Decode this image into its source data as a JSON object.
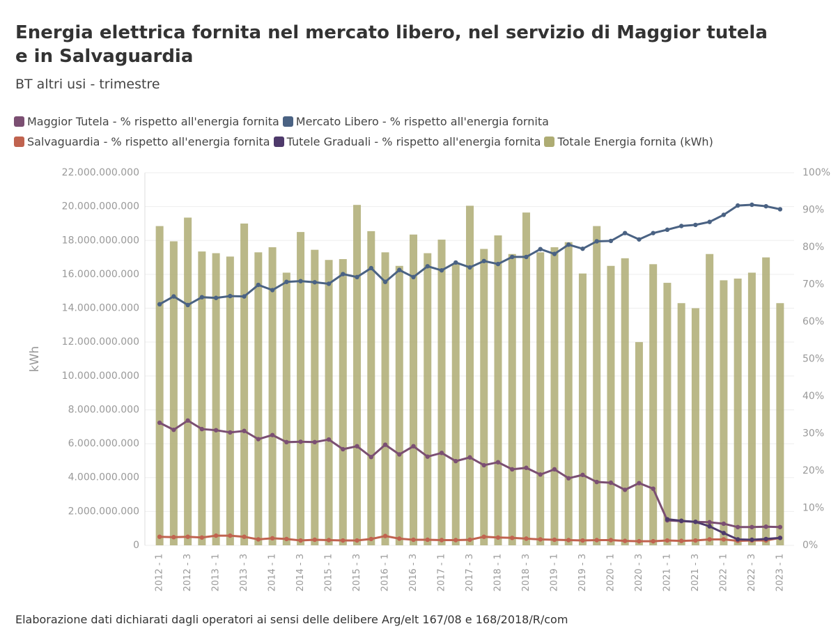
{
  "chart_data": {
    "type": "bar",
    "title": "Energia elettrica fornita nel mercato libero, nel servizio di Maggior tutela e in Salvaguardia",
    "subtitle": "BT altri usi - trimestre",
    "source": "Elaborazione dati dichiarati dagli operatori ai sensi delle delibere Arg/elt 167/08 e 168/2018/R/com",
    "y_label": "kWh",
    "categories": [
      "2012 - 1",
      null,
      "2012 - 3",
      null,
      "2013 - 1",
      null,
      "2013 - 3",
      null,
      "2014 - 1",
      null,
      "2014 - 3",
      null,
      "2015 - 1",
      null,
      "2015 - 3",
      null,
      "2016 - 1",
      null,
      "2016 - 3",
      null,
      "2017 - 1",
      null,
      "2017 - 3",
      null,
      "2018 - 1",
      null,
      "2018 - 3",
      null,
      "2019 - 1",
      null,
      "2019 - 3",
      null,
      "2020 - 1",
      null,
      "2020 - 3",
      null,
      "2021 - 1",
      null,
      "2021 - 3",
      null,
      "2022 - 1",
      null,
      "2022 - 3",
      null,
      "2023 - 1"
    ],
    "series": [
      {
        "name": "Maggior Tutela - % rispetto all'energia fornita",
        "type": "line",
        "axis": "y2",
        "color": "#7b4f72",
        "values": [
          32.9,
          31.0,
          33.5,
          31.2,
          30.9,
          30.3,
          30.7,
          28.5,
          29.6,
          27.7,
          27.8,
          27.7,
          28.4,
          25.8,
          26.6,
          23.7,
          27.0,
          24.4,
          26.6,
          23.8,
          24.8,
          22.6,
          23.6,
          21.5,
          22.3,
          20.4,
          20.8,
          19.0,
          20.4,
          18.0,
          18.9,
          17.0,
          16.8,
          14.9,
          16.7,
          15.2,
          6.7,
          6.5,
          6.3,
          6.2,
          5.8,
          4.9,
          4.9,
          5.0,
          4.9
        ]
      },
      {
        "name": "Mercato Libero - % rispetto all'energia fornita",
        "type": "line",
        "axis": "y2",
        "color": "#4a6283",
        "values": [
          64.7,
          66.8,
          64.5,
          66.6,
          66.4,
          66.9,
          66.8,
          69.9,
          68.5,
          70.7,
          70.9,
          70.6,
          70.2,
          72.8,
          72.0,
          74.4,
          70.7,
          73.9,
          72.0,
          74.9,
          73.8,
          75.9,
          74.6,
          76.3,
          75.5,
          77.4,
          77.4,
          79.5,
          78.2,
          80.7,
          79.6,
          81.6,
          81.7,
          83.8,
          82.1,
          83.8,
          84.7,
          85.7,
          86.0,
          86.8,
          88.7,
          91.2,
          91.4,
          91.0,
          90.2
        ]
      },
      {
        "name": "Salvaguardia - % rispetto all'energia fornita",
        "type": "line",
        "axis": "y2",
        "color": "#c0634f",
        "values": [
          2.3,
          2.2,
          2.3,
          2.1,
          2.6,
          2.6,
          2.3,
          1.6,
          1.9,
          1.7,
          1.3,
          1.5,
          1.4,
          1.3,
          1.3,
          1.7,
          2.5,
          1.8,
          1.5,
          1.5,
          1.4,
          1.4,
          1.5,
          2.3,
          2.1,
          2.0,
          1.8,
          1.6,
          1.5,
          1.4,
          1.3,
          1.4,
          1.4,
          1.2,
          1.1,
          1.1,
          1.3,
          1.2,
          1.3,
          1.6,
          1.6,
          1.2,
          1.3,
          1.3,
          2.0
        ]
      },
      {
        "name": "Tutele Graduali - % rispetto all'energia fornita",
        "type": "line",
        "axis": "y2",
        "color": "#4e3a6b",
        "values": [
          null,
          null,
          null,
          null,
          null,
          null,
          null,
          null,
          null,
          null,
          null,
          null,
          null,
          null,
          null,
          null,
          null,
          null,
          null,
          null,
          null,
          null,
          null,
          null,
          null,
          null,
          null,
          null,
          null,
          null,
          null,
          null,
          null,
          null,
          null,
          null,
          7.0,
          6.6,
          6.3,
          5.1,
          3.3,
          1.6,
          1.5,
          1.7,
          2.0
        ]
      },
      {
        "name": "Totale Energia fornita (kWh)",
        "type": "bar",
        "color": "#aeac73",
        "values": [
          18850000000,
          17950000000,
          19350000000,
          17350000000,
          17250000000,
          17050000000,
          19000000000,
          17300000000,
          17600000000,
          16100000000,
          18500000000,
          17450000000,
          16850000000,
          16900000000,
          20100000000,
          18550000000,
          17300000000,
          16500000000,
          18350000000,
          17250000000,
          18050000000,
          16600000000,
          20050000000,
          17500000000,
          18300000000,
          17200000000,
          19650000000,
          17300000000,
          17600000000,
          17900000000,
          16050000000,
          18850000000,
          16500000000,
          16950000000,
          12000000000,
          16600000000,
          15500000000,
          14300000000,
          14000000000,
          17200000000,
          15650000000,
          15750000000,
          16100000000,
          17000000000,
          14300000000
        ]
      }
    ],
    "ylim": [
      0,
      22000000000
    ],
    "yticks": [
      0,
      {
        "value": 2000000000,
        "label": "2.000.000.000"
      },
      {
        "value": 4000000000,
        "label": "4.000.000.000"
      },
      {
        "value": 6000000000,
        "label": "6.000.000.000"
      },
      {
        "value": 8000000000,
        "label": "8.000.000.000"
      },
      {
        "value": 10000000000,
        "label": "10.000.000.000"
      },
      {
        "value": 12000000000,
        "label": "12.000.000.000"
      },
      {
        "value": 14000000000,
        "label": "14.000.000.000"
      },
      {
        "value": 16000000000,
        "label": "16.000.000.000"
      },
      {
        "value": 18000000000,
        "label": "18.000.000.000"
      },
      {
        "value": 20000000000,
        "label": "20.000.000.000"
      },
      {
        "value": 22000000000,
        "label": "22.000.000.000"
      }
    ],
    "y2lim": [
      0,
      100
    ],
    "y2ticks": [
      {
        "value": 0,
        "label": "0%"
      },
      {
        "value": 10,
        "label": "10%"
      },
      {
        "value": 20,
        "label": "20%"
      },
      {
        "value": 30,
        "label": "30%"
      },
      {
        "value": 40,
        "label": "40%"
      },
      {
        "value": 50,
        "label": "50%"
      },
      {
        "value": 60,
        "label": "60%"
      },
      {
        "value": 70,
        "label": "70%"
      },
      {
        "value": 80,
        "label": "80%"
      },
      {
        "value": 90,
        "label": "90%"
      },
      {
        "value": 100,
        "label": "100%"
      }
    ],
    "grid": true
  }
}
